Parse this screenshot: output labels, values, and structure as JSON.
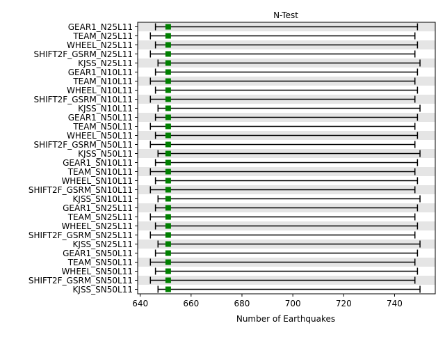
{
  "chart_data": {
    "type": "errorbar",
    "title": "N-Test",
    "xlabel": "Number of Earthquakes",
    "ylabel": "",
    "xlim": [
      639,
      756
    ],
    "xticks": [
      640,
      660,
      680,
      700,
      720,
      740
    ],
    "grid": false,
    "row_shading": "alternating light-gray bands",
    "colors": {
      "observed_marker": "#008000",
      "interval": "#000000",
      "band": "#e5e5e5"
    },
    "observed": 651,
    "rows": [
      {
        "label": "GEAR1_N25L11",
        "low": 646,
        "high": 749
      },
      {
        "label": "TEAM_N25L11",
        "low": 644,
        "high": 748
      },
      {
        "label": "WHEEL_N25L11",
        "low": 646,
        "high": 749
      },
      {
        "label": "SHIFT2F_GSRM_N25L11",
        "low": 644,
        "high": 748
      },
      {
        "label": "KJSS_N25L11",
        "low": 647,
        "high": 750
      },
      {
        "label": "GEAR1_N10L11",
        "low": 646,
        "high": 749
      },
      {
        "label": "TEAM_N10L11",
        "low": 644,
        "high": 748
      },
      {
        "label": "WHEEL_N10L11",
        "low": 646,
        "high": 749
      },
      {
        "label": "SHIFT2F_GSRM_N10L11",
        "low": 644,
        "high": 748
      },
      {
        "label": "KJSS_N10L11",
        "low": 647,
        "high": 750
      },
      {
        "label": "GEAR1_N50L11",
        "low": 646,
        "high": 749
      },
      {
        "label": "TEAM_N50L11",
        "low": 644,
        "high": 748
      },
      {
        "label": "WHEEL_N50L11",
        "low": 646,
        "high": 749
      },
      {
        "label": "SHIFT2F_GSRM_N50L11",
        "low": 644,
        "high": 748
      },
      {
        "label": "KJSS_N50L11",
        "low": 647,
        "high": 750
      },
      {
        "label": "GEAR1_SN10L11",
        "low": 646,
        "high": 749
      },
      {
        "label": "TEAM_SN10L11",
        "low": 644,
        "high": 748
      },
      {
        "label": "WHEEL_SN10L11",
        "low": 646,
        "high": 749
      },
      {
        "label": "SHIFT2F_GSRM_SN10L11",
        "low": 644,
        "high": 748
      },
      {
        "label": "KJSS_SN10L11",
        "low": 647,
        "high": 750
      },
      {
        "label": "GEAR1_SN25L11",
        "low": 646,
        "high": 749
      },
      {
        "label": "TEAM_SN25L11",
        "low": 644,
        "high": 748
      },
      {
        "label": "WHEEL_SN25L11",
        "low": 646,
        "high": 749
      },
      {
        "label": "SHIFT2F_GSRM_SN25L11",
        "low": 644,
        "high": 748
      },
      {
        "label": "KJSS_SN25L11",
        "low": 647,
        "high": 750
      },
      {
        "label": "GEAR1_SN50L11",
        "low": 646,
        "high": 749
      },
      {
        "label": "TEAM_SN50L11",
        "low": 644,
        "high": 748
      },
      {
        "label": "WHEEL_SN50L11",
        "low": 646,
        "high": 749
      },
      {
        "label": "SHIFT2F_GSRM_SN50L11",
        "low": 644,
        "high": 748
      },
      {
        "label": "KJSS_SN50L11",
        "low": 647,
        "high": 750
      }
    ]
  }
}
